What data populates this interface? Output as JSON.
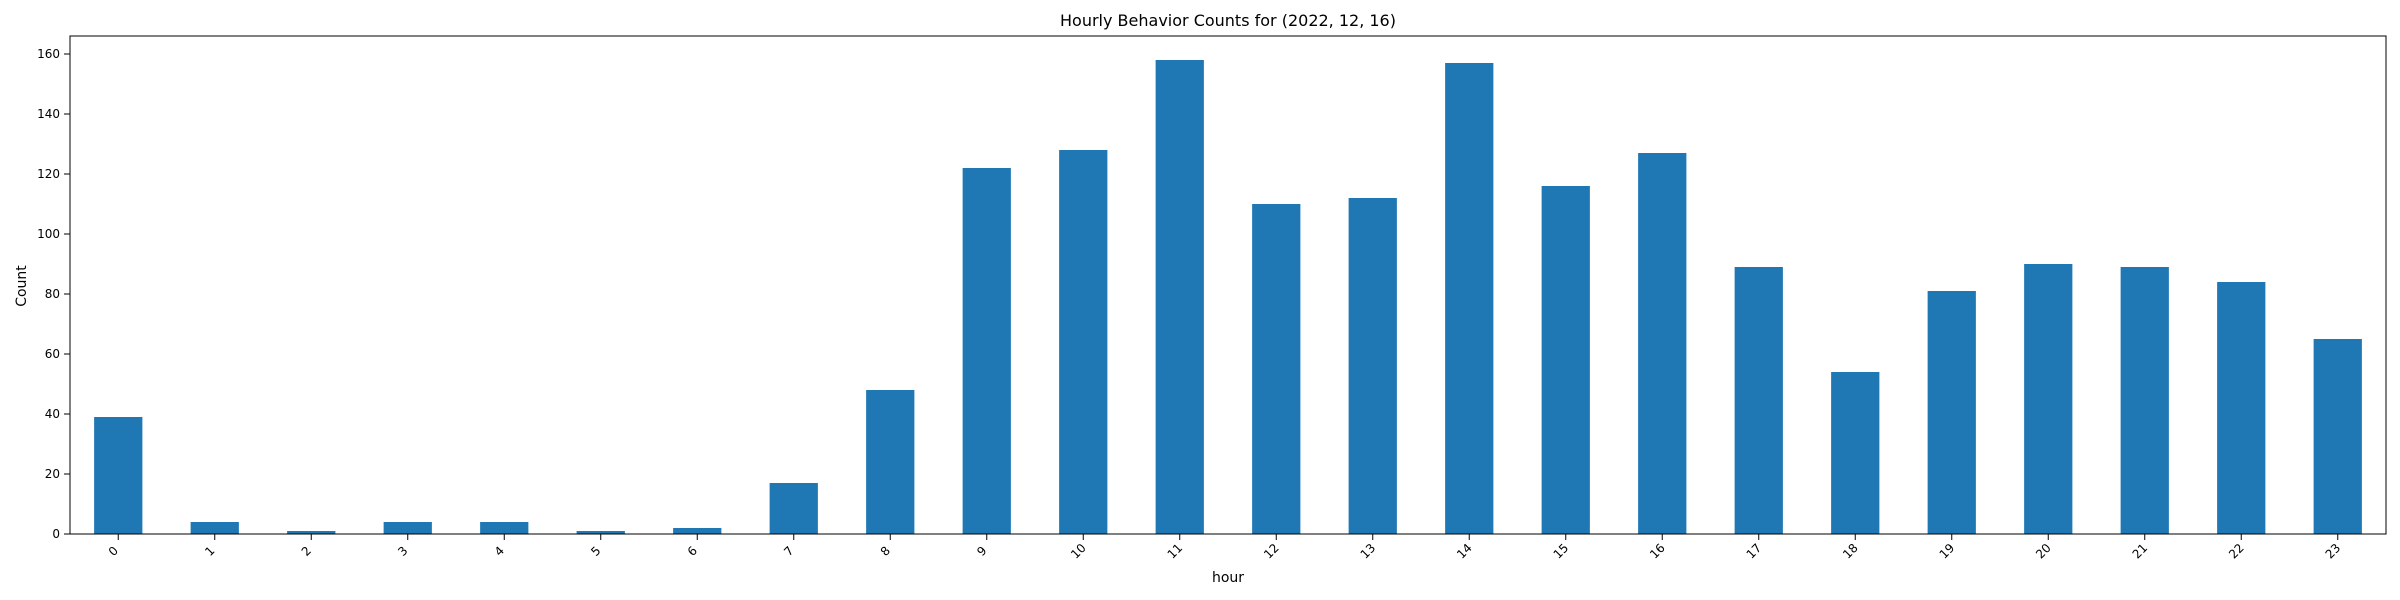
{
  "chart_data": {
    "type": "bar",
    "title": "Hourly Behavior Counts for (2022, 12, 16)",
    "xlabel": "hour",
    "ylabel": "Count",
    "categories": [
      "0",
      "1",
      "2",
      "3",
      "4",
      "5",
      "6",
      "7",
      "8",
      "9",
      "10",
      "11",
      "12",
      "13",
      "14",
      "15",
      "16",
      "17",
      "18",
      "19",
      "20",
      "21",
      "22",
      "23"
    ],
    "values": [
      39,
      4,
      1,
      4,
      4,
      1,
      2,
      17,
      48,
      122,
      128,
      158,
      110,
      112,
      157,
      116,
      127,
      89,
      54,
      81,
      90,
      89,
      84,
      65
    ],
    "ylim": [
      0,
      166
    ],
    "yticks": [
      0,
      20,
      40,
      60,
      80,
      100,
      120,
      140,
      160
    ],
    "bar_color": "#1f77b4",
    "grid": false,
    "legend": "none"
  }
}
